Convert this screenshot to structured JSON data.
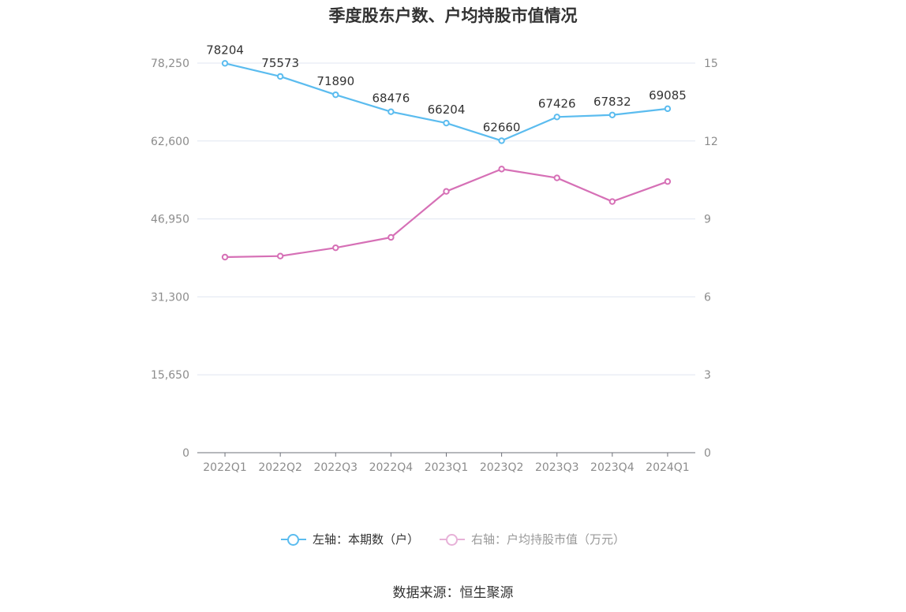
{
  "title": "季度股东户数、户均持股市值情况",
  "source": "数据来源：恒生聚源",
  "legend": [
    {
      "label": "左轴：本期数（户）",
      "color": "#5bbcef"
    },
    {
      "label": "右轴：户均持股市值（万元）",
      "color": "#d670b6"
    }
  ],
  "chart_data": {
    "type": "line",
    "categories": [
      "2022Q1",
      "2022Q2",
      "2022Q3",
      "2022Q4",
      "2023Q1",
      "2023Q2",
      "2023Q3",
      "2023Q4",
      "2024Q1"
    ],
    "left_axis": {
      "ticks": [
        "0",
        "15,650",
        "31,300",
        "46,950",
        "62,600",
        "78,250"
      ],
      "range": [
        0,
        78250
      ]
    },
    "right_axis": {
      "ticks": [
        "0",
        "3",
        "6",
        "9",
        "12",
        "15"
      ],
      "range": [
        0,
        15
      ]
    },
    "grid": true,
    "series": [
      {
        "name": "左轴：本期数（户）",
        "axis": "left",
        "color": "#5bbcef",
        "values": [
          78204,
          75573,
          71890,
          68476,
          66204,
          62660,
          67426,
          67832,
          69085
        ],
        "labels": [
          "78204",
          "75573",
          "71890",
          "68476",
          "66204",
          "62660",
          "67426",
          "67832",
          "69085"
        ]
      },
      {
        "name": "右轴：户均持股市值（万元）",
        "axis": "right",
        "color": "#d670b6",
        "values": [
          7.53,
          7.57,
          7.89,
          8.29,
          10.06,
          10.92,
          10.58,
          9.67,
          10.44
        ]
      }
    ]
  }
}
